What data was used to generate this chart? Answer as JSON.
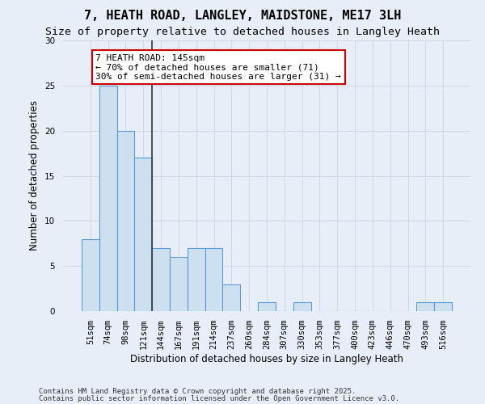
{
  "title_line1": "7, HEATH ROAD, LANGLEY, MAIDSTONE, ME17 3LH",
  "title_line2": "Size of property relative to detached houses in Langley Heath",
  "xlabel": "Distribution of detached houses by size in Langley Heath",
  "ylabel": "Number of detached properties",
  "categories": [
    "51sqm",
    "74sqm",
    "98sqm",
    "121sqm",
    "144sqm",
    "167sqm",
    "191sqm",
    "214sqm",
    "237sqm",
    "260sqm",
    "284sqm",
    "307sqm",
    "330sqm",
    "353sqm",
    "377sqm",
    "400sqm",
    "423sqm",
    "446sqm",
    "470sqm",
    "493sqm",
    "516sqm"
  ],
  "values": [
    8,
    25,
    20,
    17,
    7,
    6,
    7,
    7,
    3,
    0,
    1,
    0,
    1,
    0,
    0,
    0,
    0,
    0,
    0,
    1,
    1
  ],
  "bar_color": "#cce0f0",
  "bar_edge_color": "#5b9bd5",
  "vline_x": 3.5,
  "annotation_line1": "7 HEATH ROAD: 145sqm",
  "annotation_line2": "← 70% of detached houses are smaller (71)",
  "annotation_line3": "30% of semi-detached houses are larger (31) →",
  "annotation_box_color": "#ffffff",
  "annotation_box_edge_color": "#cc0000",
  "vline_color": "#333333",
  "grid_color": "#d0d8e8",
  "background_color": "#e8eef8",
  "ylim": [
    0,
    30
  ],
  "yticks": [
    0,
    5,
    10,
    15,
    20,
    25,
    30
  ],
  "footnote_line1": "Contains HM Land Registry data © Crown copyright and database right 2025.",
  "footnote_line2": "Contains public sector information licensed under the Open Government Licence v3.0.",
  "title_fontsize": 11,
  "subtitle_fontsize": 9.5,
  "axis_label_fontsize": 8.5,
  "tick_fontsize": 7.5,
  "annotation_fontsize": 8,
  "footnote_fontsize": 6.5
}
